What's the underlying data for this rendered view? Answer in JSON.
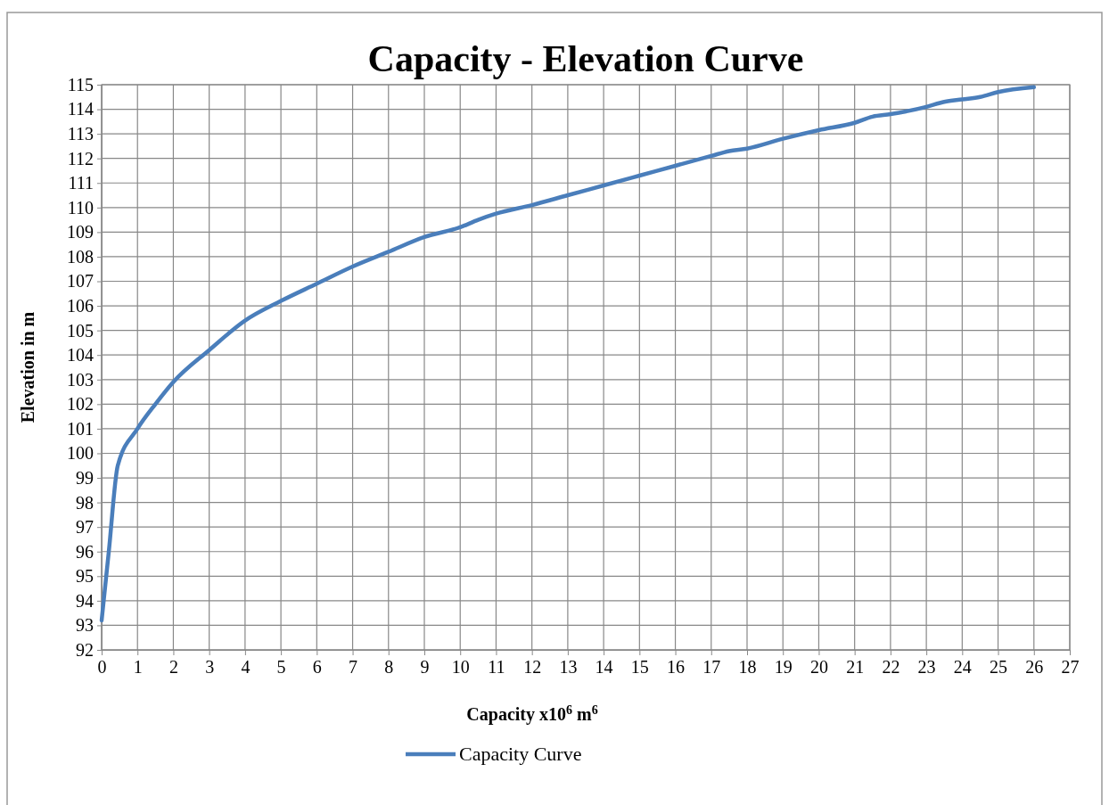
{
  "chart_data": {
    "type": "line",
    "title": "Capacity - Elevation Curve",
    "xlabel": "Capacity x10$^{6}$ m$^{6}$",
    "ylabel": "Elevation in m",
    "x": [
      0,
      0.2,
      0.45,
      1,
      1.5,
      2,
      3,
      4,
      5,
      6,
      7,
      8,
      9,
      10,
      10.5,
      11,
      12,
      13,
      14,
      15,
      16,
      17,
      17.5,
      18,
      19,
      20,
      21,
      21.5,
      22,
      23,
      23.5,
      24,
      24.5,
      25,
      26
    ],
    "series": [
      {
        "name": "Capacity Curve",
        "color": "#4a7ebb",
        "values": [
          93.2,
          96,
          99.5,
          101,
          102,
          102.9,
          104.2,
          105.4,
          106.2,
          106.9,
          107.6,
          108.2,
          108.8,
          109.2,
          109.5,
          109.75,
          110.1,
          110.5,
          110.9,
          111.3,
          111.7,
          112.1,
          112.3,
          112.4,
          112.8,
          113.15,
          113.45,
          113.7,
          113.8,
          114.1,
          114.3,
          114.4,
          114.5,
          114.7,
          114.9
        ]
      }
    ],
    "xlim": [
      0,
      27
    ],
    "xticks": [
      0,
      1,
      2,
      3,
      4,
      5,
      6,
      7,
      8,
      9,
      10,
      11,
      12,
      13,
      14,
      15,
      16,
      17,
      18,
      19,
      20,
      21,
      22,
      23,
      24,
      25,
      26,
      27
    ],
    "ylim": [
      92,
      115
    ],
    "yticks": [
      92,
      93,
      94,
      95,
      96,
      97,
      98,
      99,
      100,
      101,
      102,
      103,
      104,
      105,
      106,
      107,
      108,
      109,
      110,
      111,
      112,
      113,
      114,
      115
    ],
    "grid": true,
    "legend": "bottom",
    "marker": "none",
    "line_style": "solid"
  }
}
